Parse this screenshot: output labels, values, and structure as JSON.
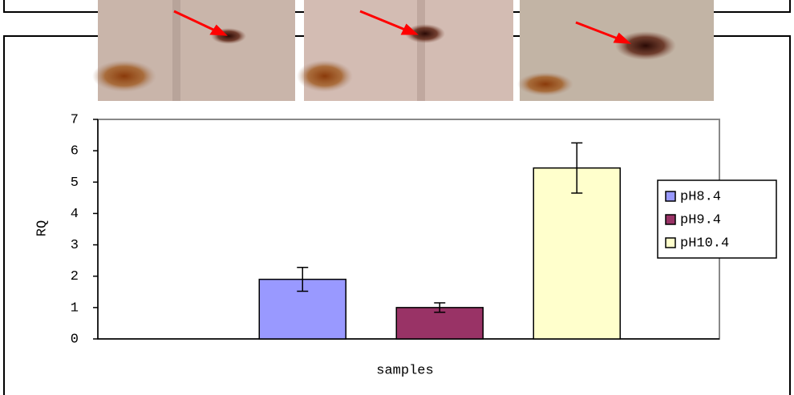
{
  "chart_data": {
    "type": "bar",
    "categories": [
      null
    ],
    "series": [
      {
        "name": "pH8.4",
        "color": "#9999ff",
        "values": [
          1.9
        ],
        "errors": [
          0.38
        ]
      },
      {
        "name": "pH9.4",
        "color": "#993366",
        "values": [
          1.0
        ],
        "errors": [
          0.15
        ]
      },
      {
        "name": "pH10.4",
        "color": "#ffffcc",
        "values": [
          5.45
        ],
        "errors": [
          0.8
        ]
      }
    ],
    "ylim": [
      0,
      7
    ],
    "yticks": [
      0,
      1,
      2,
      3,
      4,
      5,
      6,
      7
    ],
    "y_label": "RQ",
    "x_label": "samples",
    "legend": "right"
  }
}
